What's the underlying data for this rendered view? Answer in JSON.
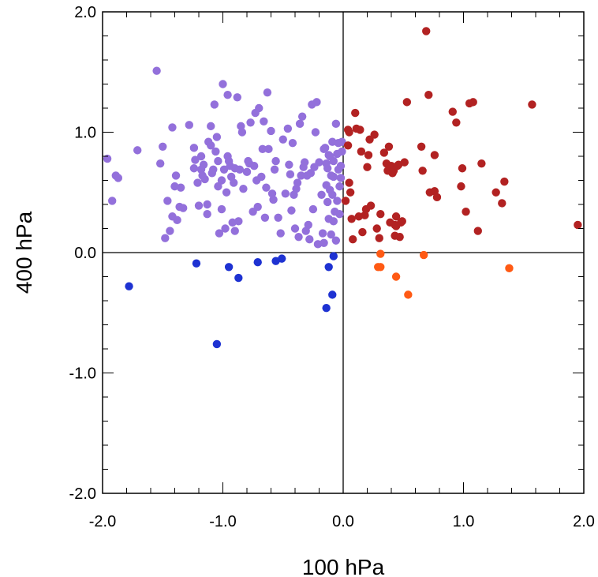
{
  "chart_data": {
    "type": "scatter",
    "xlabel": "100 hPa",
    "ylabel": "400 hPa",
    "xlim": [
      -2.0,
      2.0
    ],
    "ylim": [
      -2.0,
      2.0
    ],
    "x_ticks": [
      -2.0,
      -1.0,
      0.0,
      1.0,
      2.0
    ],
    "x_tick_labels": [
      "-2.0",
      "-1.0",
      "0.0",
      "1.0",
      "2.0"
    ],
    "y_ticks": [
      -2.0,
      -1.0,
      0.0,
      1.0,
      2.0
    ],
    "y_tick_labels": [
      "-2.0",
      "-1.0",
      "0.0",
      "1.0",
      "2.0"
    ],
    "minor_tick_step": 0.2,
    "zero_lines": true,
    "grid": false,
    "series": [
      {
        "color": "#9370DB",
        "points": [
          [
            -1.96,
            0.78
          ],
          [
            -1.92,
            0.43
          ],
          [
            -1.89,
            0.64
          ],
          [
            -1.87,
            0.62
          ],
          [
            -1.71,
            0.85
          ],
          [
            -1.55,
            1.51
          ],
          [
            -1.52,
            0.74
          ],
          [
            -1.5,
            0.88
          ],
          [
            -1.48,
            0.12
          ],
          [
            -1.46,
            0.43
          ],
          [
            -1.44,
            0.18
          ],
          [
            -1.42,
            0.3
          ],
          [
            -1.42,
            1.04
          ],
          [
            -1.4,
            0.55
          ],
          [
            -1.39,
            0.64
          ],
          [
            -1.38,
            0.27
          ],
          [
            -1.36,
            0.38
          ],
          [
            -1.35,
            0.54
          ],
          [
            -1.33,
            0.37
          ],
          [
            -1.28,
            1.06
          ],
          [
            -1.24,
            0.87
          ],
          [
            -1.24,
            0.7
          ],
          [
            -1.23,
            0.77
          ],
          [
            -1.21,
            0.58
          ],
          [
            -1.2,
            0.39
          ],
          [
            -1.18,
            0.8
          ],
          [
            -1.18,
            0.69
          ],
          [
            -1.17,
            0.64
          ],
          [
            -1.16,
            0.73
          ],
          [
            -1.15,
            0.61
          ],
          [
            -1.13,
            0.4
          ],
          [
            -1.13,
            0.32
          ],
          [
            -1.12,
            0.92
          ],
          [
            -1.1,
            1.05
          ],
          [
            -1.1,
            0.89
          ],
          [
            -1.09,
            0.66
          ],
          [
            -1.08,
            0.69
          ],
          [
            -1.07,
            1.23
          ],
          [
            -1.06,
            0.84
          ],
          [
            -1.05,
            0.96
          ],
          [
            -1.04,
            0.55
          ],
          [
            -1.04,
            0.76
          ],
          [
            -1.03,
            0.16
          ],
          [
            -1.01,
            0.36
          ],
          [
            -1.01,
            0.6
          ],
          [
            -1.0,
            1.4
          ],
          [
            -0.99,
            0.69
          ],
          [
            -0.98,
            0.2
          ],
          [
            -0.97,
            0.5
          ],
          [
            -0.96,
            1.31
          ],
          [
            -0.96,
            0.8
          ],
          [
            -0.95,
            0.76
          ],
          [
            -0.94,
            0.72
          ],
          [
            -0.93,
            0.63
          ],
          [
            -0.92,
            0.25
          ],
          [
            -0.91,
            0.58
          ],
          [
            -0.9,
            0.7
          ],
          [
            -0.9,
            0.18
          ],
          [
            -0.88,
            1.29
          ],
          [
            -0.87,
            0.26
          ],
          [
            -0.86,
            0.69
          ],
          [
            -0.85,
            1.05
          ],
          [
            -0.84,
            1.0
          ],
          [
            -0.83,
            0.53
          ],
          [
            -0.8,
            0.67
          ],
          [
            -0.79,
            0.76
          ],
          [
            -0.78,
            0.74
          ],
          [
            -0.77,
            1.08
          ],
          [
            -0.75,
            0.34
          ],
          [
            -0.74,
            0.72
          ],
          [
            -0.73,
            1.16
          ],
          [
            -0.72,
            0.6
          ],
          [
            -0.71,
            0.38
          ],
          [
            -0.7,
            1.2
          ],
          [
            -0.68,
            0.63
          ],
          [
            -0.67,
            0.86
          ],
          [
            -0.66,
            1.09
          ],
          [
            -0.65,
            0.29
          ],
          [
            -0.64,
            0.54
          ],
          [
            -0.63,
            1.33
          ],
          [
            -0.62,
            0.86
          ],
          [
            -0.6,
            1.01
          ],
          [
            -0.59,
            0.49
          ],
          [
            -0.58,
            0.44
          ],
          [
            -0.57,
            0.69
          ],
          [
            -0.56,
            0.76
          ],
          [
            -0.54,
            0.29
          ],
          [
            -0.52,
            0.16
          ],
          [
            -0.5,
            0.94
          ],
          [
            -0.48,
            0.49
          ],
          [
            -0.46,
            1.03
          ],
          [
            -0.45,
            0.73
          ],
          [
            -0.44,
            0.65
          ],
          [
            -0.43,
            0.35
          ],
          [
            -0.42,
            0.91
          ],
          [
            -0.41,
            0.48
          ],
          [
            -0.4,
            0.2
          ],
          [
            -0.39,
            0.53
          ],
          [
            -0.38,
            0.58
          ],
          [
            -0.37,
            0.13
          ],
          [
            -0.36,
            1.07
          ],
          [
            -0.35,
            0.64
          ],
          [
            -0.34,
            1.13
          ],
          [
            -0.33,
            0.71
          ],
          [
            -0.32,
            0.75
          ],
          [
            -0.31,
            0.18
          ],
          [
            -0.3,
            0.64
          ],
          [
            -0.29,
            0.23
          ],
          [
            -0.28,
            0.11
          ],
          [
            -0.27,
            0.66
          ],
          [
            -0.26,
            1.23
          ],
          [
            -0.25,
            0.36
          ],
          [
            -0.24,
            0.71
          ],
          [
            -0.23,
            1.0
          ],
          [
            -0.22,
            1.25
          ],
          [
            -0.21,
            0.07
          ],
          [
            -0.2,
            0.75
          ],
          [
            -0.18,
            0.48
          ],
          [
            -0.17,
            0.16
          ],
          [
            -0.16,
            0.86
          ],
          [
            -0.15,
            0.87
          ],
          [
            -0.14,
            0.56
          ],
          [
            -0.13,
            0.42
          ],
          [
            -0.12,
            0.28
          ],
          [
            -0.11,
            0.52
          ],
          [
            -0.1,
            0.15
          ],
          [
            -0.09,
            0.48
          ],
          [
            -0.08,
            0.76
          ],
          [
            -0.07,
            0.34
          ],
          [
            -0.06,
            0.1
          ],
          [
            -0.05,
            0.82
          ],
          [
            -0.04,
            0.69
          ],
          [
            -0.03,
            0.32
          ],
          [
            -0.02,
            0.62
          ],
          [
            -0.01,
            0.92
          ],
          [
            -0.13,
            0.7
          ],
          [
            -0.08,
            0.63
          ],
          [
            -0.1,
            0.64
          ],
          [
            -0.16,
            0.08
          ],
          [
            -0.12,
            0.81
          ],
          [
            -0.06,
            1.07
          ],
          [
            -0.04,
            0.91
          ],
          [
            -0.03,
            0.55
          ],
          [
            -0.02,
            0.72
          ],
          [
            -0.01,
            0.84
          ],
          [
            -0.14,
            0.74
          ],
          [
            -0.05,
            0.43
          ],
          [
            -0.08,
            0.26
          ],
          [
            -0.11,
            0.8
          ],
          [
            -0.09,
            0.92
          ]
        ]
      },
      {
        "color": "#B22222",
        "points": [
          [
            0.02,
            0.43
          ],
          [
            0.04,
            1.02
          ],
          [
            0.05,
            1.0
          ],
          [
            0.05,
            0.58
          ],
          [
            0.06,
            0.5
          ],
          [
            0.07,
            0.28
          ],
          [
            0.08,
            0.11
          ],
          [
            0.1,
            1.16
          ],
          [
            0.11,
            1.03
          ],
          [
            0.13,
            0.3
          ],
          [
            0.14,
            1.02
          ],
          [
            0.15,
            0.84
          ],
          [
            0.16,
            0.17
          ],
          [
            0.18,
            0.31
          ],
          [
            0.19,
            0.36
          ],
          [
            0.2,
            0.71
          ],
          [
            0.21,
            0.81
          ],
          [
            0.22,
            0.94
          ],
          [
            0.23,
            0.39
          ],
          [
            0.26,
            0.98
          ],
          [
            0.28,
            0.2
          ],
          [
            0.3,
            0.12
          ],
          [
            0.31,
            0.32
          ],
          [
            0.34,
            0.83
          ],
          [
            0.36,
            0.74
          ],
          [
            0.37,
            0.68
          ],
          [
            0.38,
            0.88
          ],
          [
            0.39,
            0.25
          ],
          [
            0.4,
            0.72
          ],
          [
            0.41,
            0.66
          ],
          [
            0.42,
            0.68
          ],
          [
            0.43,
            0.14
          ],
          [
            0.44,
            0.22
          ],
          [
            0.44,
            0.3
          ],
          [
            0.45,
            0.72
          ],
          [
            0.46,
            0.73
          ],
          [
            0.47,
            0.13
          ],
          [
            0.48,
            0.25
          ],
          [
            0.49,
            0.26
          ],
          [
            0.51,
            0.75
          ],
          [
            0.53,
            1.25
          ],
          [
            0.65,
            0.88
          ],
          [
            0.66,
            0.68
          ],
          [
            0.69,
            1.84
          ],
          [
            0.71,
            1.31
          ],
          [
            0.72,
            0.5
          ],
          [
            0.76,
            0.51
          ],
          [
            0.76,
            0.81
          ],
          [
            0.78,
            0.46
          ],
          [
            0.91,
            1.17
          ],
          [
            0.94,
            1.08
          ],
          [
            0.98,
            0.55
          ],
          [
            0.99,
            0.7
          ],
          [
            1.02,
            0.34
          ],
          [
            1.05,
            1.24
          ],
          [
            1.08,
            1.25
          ],
          [
            1.12,
            0.18
          ],
          [
            1.15,
            0.74
          ],
          [
            1.27,
            0.5
          ],
          [
            1.32,
            0.41
          ],
          [
            1.34,
            0.59
          ],
          [
            1.57,
            1.23
          ],
          [
            1.95,
            0.23
          ],
          [
            0.04,
            0.89
          ],
          [
            0.43,
            0.23
          ]
        ]
      },
      {
        "color": "#1E32D2",
        "points": [
          [
            -1.78,
            -0.28
          ],
          [
            -1.22,
            -0.09
          ],
          [
            -1.05,
            -0.76
          ],
          [
            -0.95,
            -0.12
          ],
          [
            -0.87,
            -0.21
          ],
          [
            -0.71,
            -0.08
          ],
          [
            -0.56,
            -0.07
          ],
          [
            -0.51,
            -0.05
          ],
          [
            -0.14,
            -0.46
          ],
          [
            -0.12,
            -0.12
          ],
          [
            -0.09,
            -0.35
          ],
          [
            -0.08,
            -0.03
          ]
        ]
      },
      {
        "color": "#FF5A14",
        "points": [
          [
            0.29,
            -0.12
          ],
          [
            0.31,
            -0.12
          ],
          [
            0.31,
            -0.01
          ],
          [
            0.44,
            -0.2
          ],
          [
            0.54,
            -0.35
          ],
          [
            0.67,
            -0.02
          ],
          [
            1.38,
            -0.13
          ]
        ]
      }
    ]
  }
}
